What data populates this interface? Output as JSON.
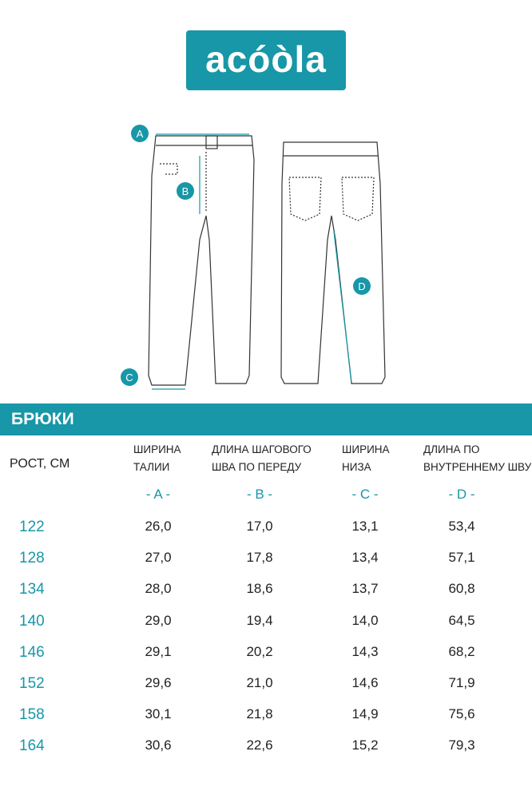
{
  "logo": "acóòla",
  "markers": [
    "A",
    "B",
    "C",
    "D"
  ],
  "section_title": "БРЮКИ",
  "table": {
    "columns": [
      {
        "header": [
          "РОСТ, СМ"
        ]
      },
      {
        "header": [
          "ШИРИНА",
          "ТАЛИИ"
        ],
        "letter": "- A -"
      },
      {
        "header": [
          "ДЛИНА ШАГОВОГО",
          "ШВА ПО ПЕРЕДУ"
        ],
        "letter": "- B -"
      },
      {
        "header": [
          "ШИРИНА",
          "НИЗА"
        ],
        "letter": "- C -"
      },
      {
        "header": [
          "ДЛИНА ПО",
          "ВНУТРЕННЕМУ ШВУ"
        ],
        "letter": "- D -"
      }
    ],
    "rows": [
      [
        122,
        "26,0",
        "17,0",
        "13,1",
        "53,4"
      ],
      [
        128,
        "27,0",
        "17,8",
        "13,4",
        "57,1"
      ],
      [
        134,
        "28,0",
        "18,6",
        "13,7",
        "60,8"
      ],
      [
        140,
        "29,0",
        "19,4",
        "14,0",
        "64,5"
      ],
      [
        146,
        "29,1",
        "20,2",
        "14,3",
        "68,2"
      ],
      [
        152,
        "29,6",
        "21,0",
        "14,6",
        "71,9"
      ],
      [
        158,
        "30,1",
        "21,8",
        "14,9",
        "75,6"
      ],
      [
        164,
        "30,6",
        "22,6",
        "15,2",
        "79,3"
      ]
    ]
  }
}
